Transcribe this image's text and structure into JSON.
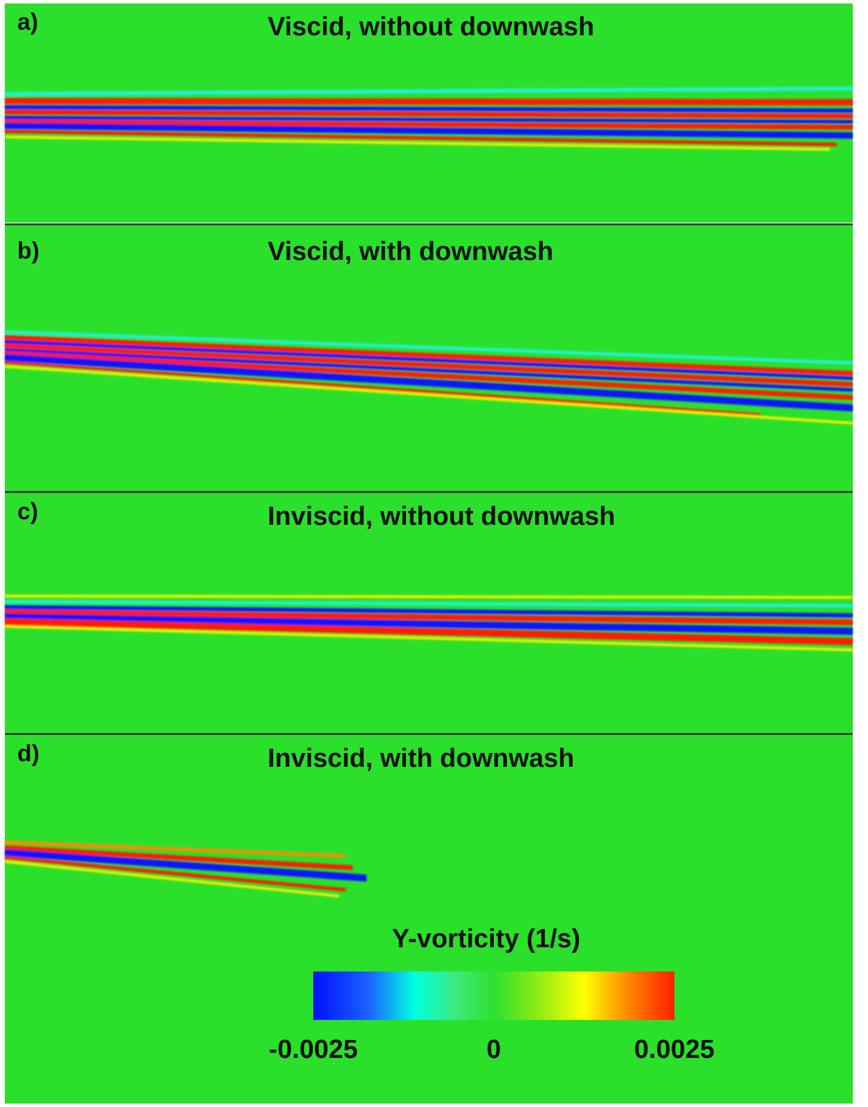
{
  "panels": [
    {
      "label": "a)",
      "title": "Viscid, without downwash"
    },
    {
      "label": "b)",
      "title": "Viscid, with downwash"
    },
    {
      "label": "c)",
      "title": "Inviscid, without downwash"
    },
    {
      "label": "d)",
      "title": "Inviscid, with downwash"
    }
  ],
  "colorbar": {
    "title": "Y-vorticity (1/s)",
    "lim": [
      -0.0025,
      0.0025
    ],
    "ticks": [
      -0.0025,
      0,
      0.0025
    ]
  }
}
